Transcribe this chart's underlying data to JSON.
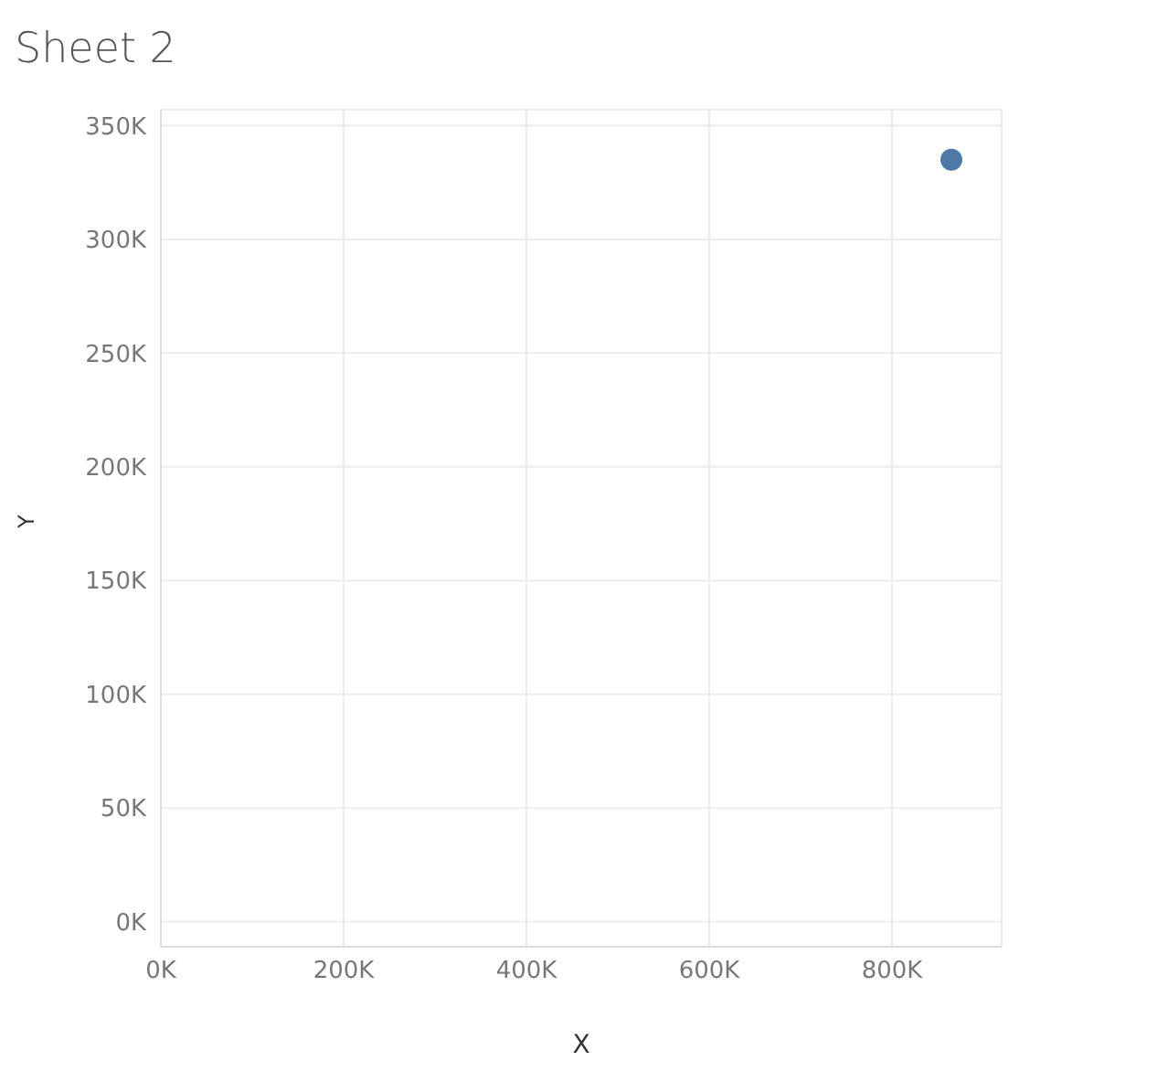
{
  "chart_data": {
    "type": "scatter",
    "title": "Sheet 2",
    "xlabel": "X",
    "ylabel": "Y",
    "x": [
      865000
    ],
    "series": [
      {
        "color": "#4e79a7",
        "values": [
          335000
        ]
      }
    ],
    "xlim": [
      0,
      920000
    ],
    "ylim": [
      -11000,
      357000
    ],
    "xticks": [
      {
        "value": 0,
        "label": "0K"
      },
      {
        "value": 200000,
        "label": "200K"
      },
      {
        "value": 400000,
        "label": "400K"
      },
      {
        "value": 600000,
        "label": "600K"
      },
      {
        "value": 800000,
        "label": "800K"
      }
    ],
    "yticks": [
      {
        "value": 0,
        "label": "0K"
      },
      {
        "value": 50000,
        "label": "50K"
      },
      {
        "value": 100000,
        "label": "100K"
      },
      {
        "value": 150000,
        "label": "150K"
      },
      {
        "value": 200000,
        "label": "200K"
      },
      {
        "value": 250000,
        "label": "250K"
      },
      {
        "value": 300000,
        "label": "300K"
      },
      {
        "value": 350000,
        "label": "350K"
      }
    ],
    "grid": true,
    "marker": "circle"
  }
}
